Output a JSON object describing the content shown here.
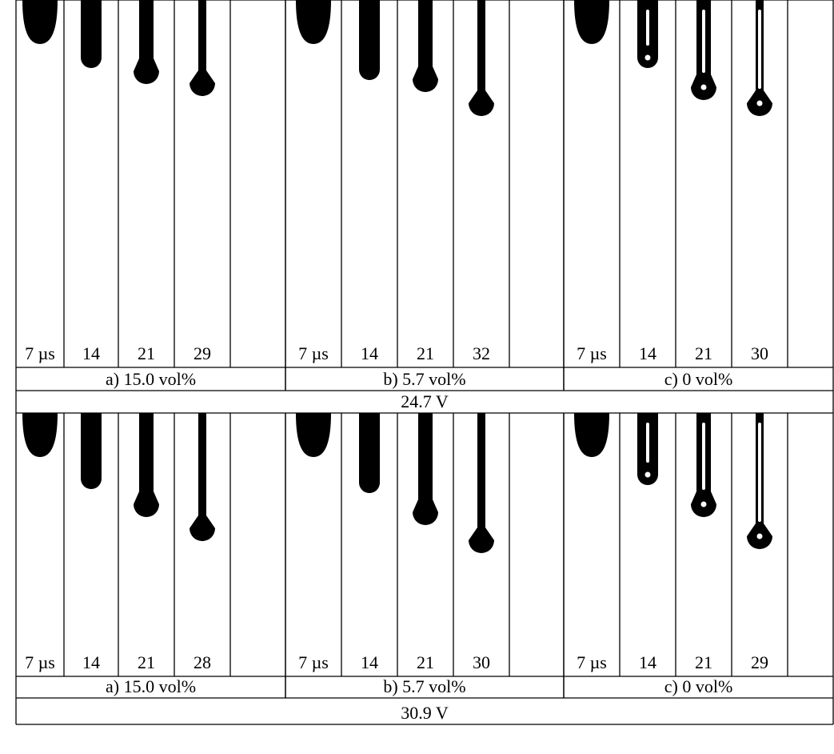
{
  "blocks": [
    {
      "groups": [
        {
          "labels": [
            "7 µs",
            "14",
            "21",
            "29"
          ],
          "caption": "a) 15.0 vol%"
        },
        {
          "labels": [
            "7 µs",
            "14",
            "21",
            "32"
          ],
          "caption": "b) 5.7 vol%"
        },
        {
          "labels": [
            "7 µs",
            "14",
            "21",
            "30"
          ],
          "caption": "c) 0 vol%"
        }
      ],
      "voltage": "24.7 V"
    },
    {
      "groups": [
        {
          "labels": [
            "7 µs",
            "14",
            "21",
            "28"
          ],
          "caption": "a) 15.0 vol%"
        },
        {
          "labels": [
            "7 µs",
            "14",
            "21",
            "30"
          ],
          "caption": "b) 5.7 vol%"
        },
        {
          "labels": [
            "7 µs",
            "14",
            "21",
            "29"
          ],
          "caption": "c) 0 vol%"
        }
      ],
      "voltage": "30.9 V"
    }
  ]
}
